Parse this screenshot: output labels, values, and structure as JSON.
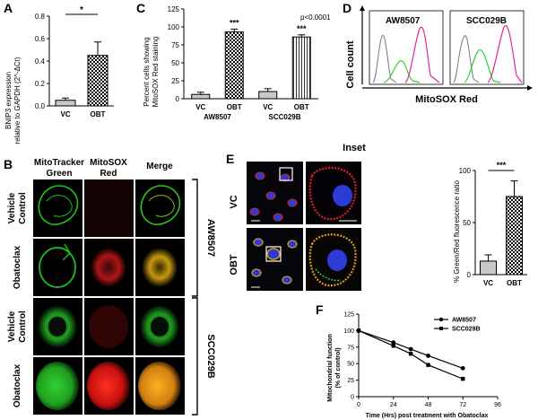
{
  "panels": {
    "A": "A",
    "B": "B",
    "C": "C",
    "D": "D",
    "E": "E",
    "F": "F"
  },
  "colors": {
    "mitotracker": "#22c01c",
    "mitosox": "#e01010",
    "merge": "#e0a010",
    "nucleus": "#2a3bd6",
    "flow_vc": "#808080",
    "flow_green": "#30d030",
    "flow_pink": "#e0289a"
  },
  "chart_data": [
    {
      "id": "A",
      "type": "bar",
      "ylabel_line1": "BNIP3 expression",
      "ylabel_line2": "relative to GAPDH (2^-ΔCt)",
      "categories": [
        "VC",
        "OBT"
      ],
      "values": [
        0.05,
        0.45
      ],
      "errors": [
        0.02,
        0.12
      ],
      "ylim": [
        0,
        0.8
      ],
      "yticks": [
        "0.0",
        "0.2",
        "0.4",
        "0.6",
        "0.8"
      ],
      "significance": "*"
    },
    {
      "id": "C",
      "type": "bar",
      "ylabel_line1": "Percent cells showing",
      "ylabel_line2": "MitoSOX Red staining",
      "categories": [
        "VC",
        "OBT",
        "VC",
        "OBT"
      ],
      "groups": [
        "AW8507",
        "SCC029B"
      ],
      "values": [
        6,
        93,
        10,
        86
      ],
      "errors": [
        3,
        4,
        4,
        3
      ],
      "ylim": [
        0,
        125
      ],
      "yticks": [
        "0",
        "25",
        "50",
        "75",
        "100",
        "125"
      ],
      "significance": [
        "***",
        "***"
      ],
      "pvalue": "p<0.0001"
    },
    {
      "id": "D",
      "type": "histogram",
      "ylabel": "Cell count",
      "xlabel": "MitoSOX Red",
      "plots": [
        "AW8507",
        "SCC029B"
      ]
    },
    {
      "id": "E",
      "type": "bar",
      "ylabel": "% Green/Red fluorescence ratio",
      "categories": [
        "VC",
        "OBT"
      ],
      "values": [
        13,
        75
      ],
      "errors": [
        6,
        15
      ],
      "ylim": [
        0,
        100
      ],
      "yticks": [
        "0",
        "50",
        "100"
      ],
      "significance": "***"
    },
    {
      "id": "F",
      "type": "line",
      "ylabel_line1": "Mitochondrial function",
      "ylabel_line2": "(% of control)",
      "xlabel": "Time (Hrs) post treatment with Obatoclax",
      "x": [
        0,
        24,
        36,
        48,
        72
      ],
      "xticks": [
        "0",
        "24",
        "48",
        "72",
        "96"
      ],
      "yticks": [
        "0",
        "25",
        "50",
        "75",
        "100",
        "125"
      ],
      "xlim": [
        0,
        96
      ],
      "ylim": [
        0,
        125
      ],
      "series": [
        {
          "name": "AW8507",
          "values": [
            100,
            82,
            72,
            62,
            43
          ]
        },
        {
          "name": "SCC029B",
          "values": [
            100,
            77,
            65,
            48,
            27
          ]
        }
      ]
    }
  ],
  "microscopy_B": {
    "col_headers": [
      "MitoTracker",
      "Green",
      "MitoSOX",
      "Red",
      "Merge"
    ],
    "rows": [
      {
        "l1": "Vehicle",
        "l2": "Control"
      },
      {
        "l1": "Obatoclax",
        "l2": ""
      },
      {
        "l1": "Vehicle",
        "l2": "Control"
      },
      {
        "l1": "Obatoclax",
        "l2": ""
      }
    ],
    "groups": [
      "AW8507",
      "SCC029B"
    ]
  },
  "microscopy_E": {
    "title": "Inset",
    "rows": [
      "VC",
      "OBT"
    ]
  }
}
